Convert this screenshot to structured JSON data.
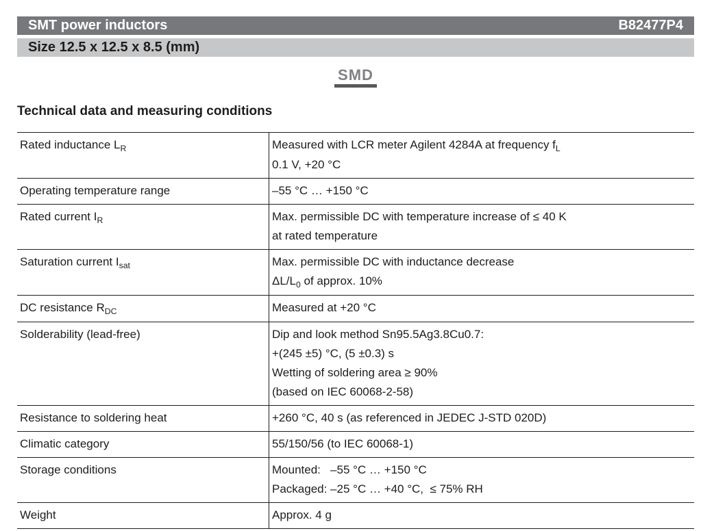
{
  "header": {
    "title": "SMT power inductors",
    "part_number": "B82477P4"
  },
  "subheader": {
    "size": "Size 12.5 x 12.5 x 8.5 (mm)"
  },
  "package_label": "SMD",
  "section_title": "Technical data and measuring conditions",
  "colors": {
    "header_bar_bg": "#77787b",
    "header_bar_text": "#ffffff",
    "subheader_bar_bg": "#c6c7c9",
    "body_text": "#1d1d1b",
    "smd_text": "#808184",
    "smd_underline": "#58595b"
  },
  "table": {
    "rows": [
      {
        "label": [
          {
            "t": "Rated inductance L"
          },
          {
            "t": "R",
            "sub": true
          }
        ],
        "value": [
          [
            {
              "t": "Measured with LCR meter Agilent 4284A at frequency f"
            },
            {
              "t": "L",
              "sub": true
            }
          ],
          [
            {
              "t": "0.1 V, +20 °C"
            }
          ]
        ]
      },
      {
        "label": [
          {
            "t": "Operating temperature range"
          }
        ],
        "value": [
          [
            {
              "t": "–55 °C … +150 °C"
            }
          ]
        ]
      },
      {
        "label": [
          {
            "t": "Rated current I"
          },
          {
            "t": "R",
            "sub": true
          }
        ],
        "value": [
          [
            {
              "t": "Max. permissible DC with temperature increase of ≤ 40 K"
            }
          ],
          [
            {
              "t": "at rated temperature"
            }
          ]
        ]
      },
      {
        "label": [
          {
            "t": "Saturation current I"
          },
          {
            "t": "sat",
            "sub": true
          }
        ],
        "value": [
          [
            {
              "t": "Max. permissible DC with inductance decrease"
            }
          ],
          [
            {
              "t": "ΔL/L"
            },
            {
              "t": "0",
              "sub": true
            },
            {
              "t": " of approx. 10%"
            }
          ]
        ]
      },
      {
        "label": [
          {
            "t": "DC resistance R"
          },
          {
            "t": "DC",
            "sub": true
          }
        ],
        "value": [
          [
            {
              "t": "Measured at +20 °C"
            }
          ]
        ]
      },
      {
        "label": [
          {
            "t": "Solderability (lead-free)"
          }
        ],
        "value": [
          [
            {
              "t": "Dip and look method Sn95.5Ag3.8Cu0.7:"
            }
          ],
          [
            {
              "t": "+(245 ±5) °C, (5 ±0.3) s"
            }
          ],
          [
            {
              "t": "Wetting of soldering area ≥ 90%"
            }
          ],
          [
            {
              "t": "(based on IEC 60068-2-58)"
            }
          ]
        ]
      },
      {
        "label": [
          {
            "t": "Resistance to soldering heat"
          }
        ],
        "value": [
          [
            {
              "t": "+260 °C, 40 s (as referenced in JEDEC J-STD 020D)"
            }
          ]
        ]
      },
      {
        "label": [
          {
            "t": "Climatic category"
          }
        ],
        "value": [
          [
            {
              "t": "55/150/56 (to IEC 60068-1)"
            }
          ]
        ]
      },
      {
        "label": [
          {
            "t": "Storage conditions"
          }
        ],
        "value": [
          [
            {
              "t": "Mounted:   –55 °C … +150 °C"
            }
          ],
          [
            {
              "t": "Packaged: –25 °C … +40 °C,  ≤ 75% RH"
            }
          ]
        ]
      },
      {
        "label": [
          {
            "t": "Weight"
          }
        ],
        "value": [
          [
            {
              "t": "Approx. 4 g"
            }
          ]
        ]
      }
    ]
  }
}
